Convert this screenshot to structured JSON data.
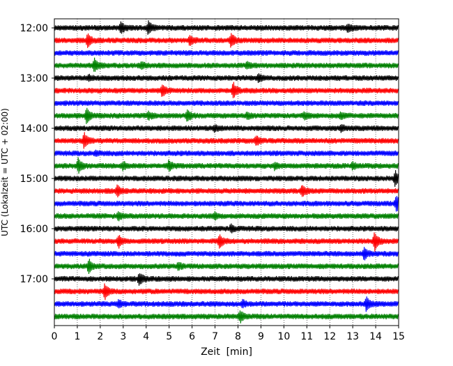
{
  "chart_data": {
    "type": "line",
    "chart_kind": "helicorder-seismogram",
    "xlabel": "Zeit  [min]",
    "ylabel": "UTC (Lokalzeit = UTC + 02:00)",
    "xlim": [
      0,
      15
    ],
    "x_ticks": [
      "0",
      "1",
      "2",
      "3",
      "4",
      "5",
      "6",
      "7",
      "8",
      "9",
      "10",
      "11",
      "12",
      "13",
      "14",
      "15"
    ],
    "grid": "vertical-dotted",
    "y_tick_labels": [
      "12:00",
      "13:00",
      "14:00",
      "15:00",
      "16:00",
      "17:00"
    ],
    "trace_colors": [
      "#000000",
      "#ff0000",
      "#0000ff",
      "#008000"
    ],
    "traces": [
      {
        "start": "12:00",
        "color": "#000000",
        "bursts": [
          {
            "t": 2.9,
            "amp": 0.85
          },
          {
            "t": 4.1,
            "amp": 0.5
          },
          {
            "t": 4.1,
            "amp": 0.5
          },
          {
            "t": 12.8,
            "amp": 0.5
          }
        ]
      },
      {
        "start": "12:15",
        "color": "#ff0000",
        "bursts": [
          {
            "t": 1.45,
            "amp": 1.0
          },
          {
            "t": 5.9,
            "amp": 0.7
          },
          {
            "t": 7.7,
            "amp": 1.15
          }
        ]
      },
      {
        "start": "12:30",
        "color": "#0000ff",
        "bursts": []
      },
      {
        "start": "12:45",
        "color": "#008000",
        "bursts": [
          {
            "t": 1.75,
            "amp": 1.0
          },
          {
            "t": 3.8,
            "amp": 0.45
          },
          {
            "t": 8.4,
            "amp": 0.4
          }
        ]
      },
      {
        "start": "13:00",
        "color": "#000000",
        "bursts": [
          {
            "t": 1.5,
            "amp": 0.35
          },
          {
            "t": 8.9,
            "amp": 0.55
          }
        ]
      },
      {
        "start": "13:15",
        "color": "#ff0000",
        "bursts": [
          {
            "t": 4.7,
            "amp": 0.85
          },
          {
            "t": 7.8,
            "amp": 1.2
          }
        ]
      },
      {
        "start": "13:30",
        "color": "#0000ff",
        "bursts": []
      },
      {
        "start": "13:45",
        "color": "#008000",
        "bursts": [
          {
            "t": 1.4,
            "amp": 1.2
          },
          {
            "t": 4.1,
            "amp": 0.5
          },
          {
            "t": 5.8,
            "amp": 0.8
          },
          {
            "t": 8.4,
            "amp": 0.45
          },
          {
            "t": 10.9,
            "amp": 0.45
          },
          {
            "t": 12.5,
            "amp": 0.45
          }
        ]
      },
      {
        "start": "14:00",
        "color": "#000000",
        "bursts": [
          {
            "t": 7.0,
            "amp": 0.4
          },
          {
            "t": 12.5,
            "amp": 0.5
          }
        ]
      },
      {
        "start": "14:15",
        "color": "#ff0000",
        "bursts": [
          {
            "t": 1.3,
            "amp": 1.1
          },
          {
            "t": 8.8,
            "amp": 0.7
          }
        ]
      },
      {
        "start": "14:30",
        "color": "#0000ff",
        "bursts": [
          {
            "t": 1.8,
            "amp": 0.3
          }
        ]
      },
      {
        "start": "14:45",
        "color": "#008000",
        "bursts": [
          {
            "t": 1.05,
            "amp": 1.1
          },
          {
            "t": 3.0,
            "amp": 0.55
          },
          {
            "t": 5.0,
            "amp": 0.75
          },
          {
            "t": 9.6,
            "amp": 0.45
          },
          {
            "t": 13.0,
            "amp": 0.5
          }
        ]
      },
      {
        "start": "15:00",
        "color": "#000000",
        "bursts": [
          {
            "t": 14.85,
            "amp": 1.1
          }
        ]
      },
      {
        "start": "15:15",
        "color": "#ff0000",
        "bursts": [
          {
            "t": 2.75,
            "amp": 0.75
          },
          {
            "t": 10.8,
            "amp": 0.85
          }
        ]
      },
      {
        "start": "15:30",
        "color": "#0000ff",
        "bursts": [
          {
            "t": 14.9,
            "amp": 1.2
          }
        ]
      },
      {
        "start": "15:45",
        "color": "#008000",
        "bursts": [
          {
            "t": 2.8,
            "amp": 0.6
          },
          {
            "t": 7.0,
            "amp": 0.4
          }
        ]
      },
      {
        "start": "16:00",
        "color": "#000000",
        "bursts": [
          {
            "t": 7.7,
            "amp": 0.5
          }
        ]
      },
      {
        "start": "16:15",
        "color": "#ff0000",
        "bursts": [
          {
            "t": 2.8,
            "amp": 0.9
          },
          {
            "t": 7.2,
            "amp": 1.0
          },
          {
            "t": 13.95,
            "amp": 1.4
          }
        ]
      },
      {
        "start": "16:30",
        "color": "#0000ff",
        "bursts": [
          {
            "t": 13.5,
            "amp": 0.9
          }
        ]
      },
      {
        "start": "16:45",
        "color": "#008000",
        "bursts": [
          {
            "t": 1.5,
            "amp": 1.0
          },
          {
            "t": 5.4,
            "amp": 0.5
          }
        ]
      },
      {
        "start": "17:00",
        "color": "#000000",
        "bursts": [
          {
            "t": 3.7,
            "amp": 0.9
          }
        ]
      },
      {
        "start": "17:15",
        "color": "#ff0000",
        "bursts": [
          {
            "t": 2.2,
            "amp": 1.1
          }
        ]
      },
      {
        "start": "17:30",
        "color": "#0000ff",
        "bursts": [
          {
            "t": 2.8,
            "amp": 0.5
          },
          {
            "t": 8.2,
            "amp": 0.5
          },
          {
            "t": 13.6,
            "amp": 1.05
          }
        ]
      },
      {
        "start": "17:45",
        "color": "#008000",
        "bursts": [
          {
            "t": 8.1,
            "amp": 0.85
          }
        ]
      }
    ]
  }
}
